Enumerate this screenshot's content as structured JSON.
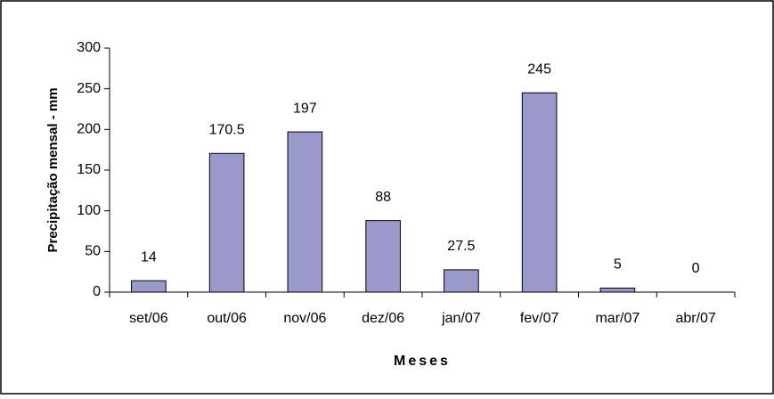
{
  "chart_data": {
    "type": "bar",
    "y_label": "Precipitação mensal - mm",
    "x_label": "Meses",
    "categories": [
      "set/06",
      "out/06",
      "nov/06",
      "dez/06",
      "jan/07",
      "fev/07",
      "mar/07",
      "abr/07"
    ],
    "values": [
      14,
      170.5,
      197,
      88,
      27.5,
      245,
      5,
      0
    ],
    "color": "#9999cc",
    "ylim": [
      0,
      300
    ],
    "yticks": [
      0,
      50,
      100,
      150,
      200,
      250,
      300
    ],
    "grid": false
  }
}
